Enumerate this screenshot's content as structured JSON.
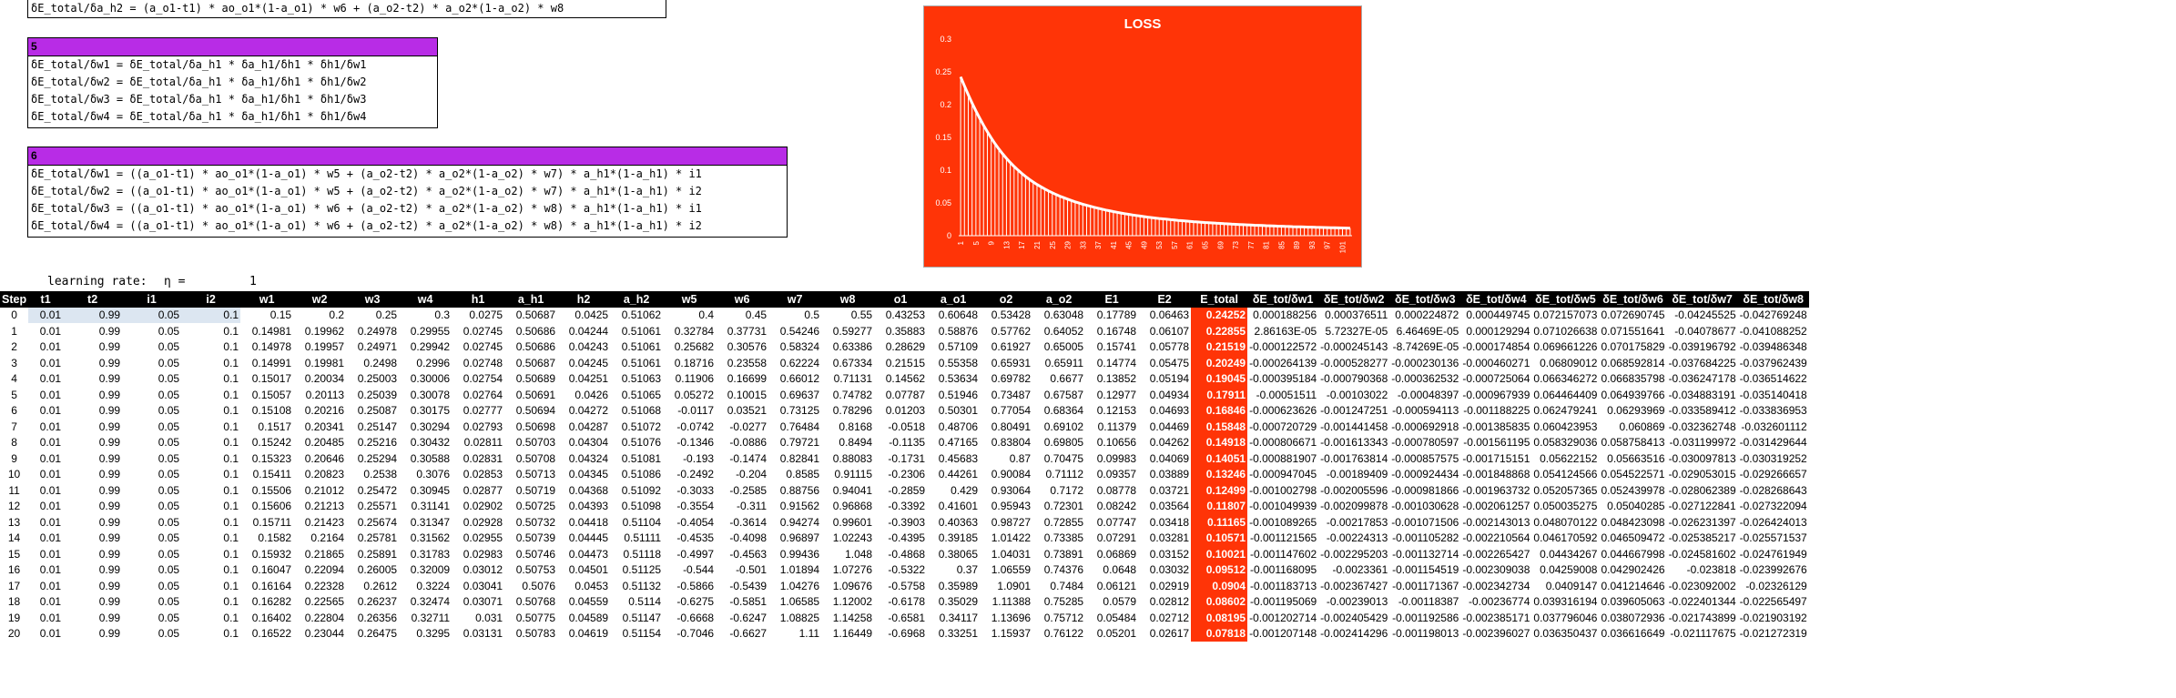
{
  "top_formula": "δE_total/δa_h2 = (a_o1-t1) * ao_o1*(1-a_o1) * w6 + (a_o2-t2) * a_o2*(1-a_o2) * w8",
  "box5": {
    "title": "5",
    "lines": [
      "δE_total/δw1 = δE_total/δa_h1 * δa_h1/δh1 * δh1/δw1",
      "δE_total/δw2 = δE_total/δa_h1 * δa_h1/δh1 * δh1/δw2",
      "δE_total/δw3 = δE_total/δa_h1 * δa_h1/δh1 * δh1/δw3",
      "δE_total/δw4 = δE_total/δa_h1 * δa_h1/δh1 * δh1/δw4"
    ]
  },
  "box6": {
    "title": "6",
    "lines": [
      "δE_total/δw1 = ((a_o1-t1) * ao_o1*(1-a_o1) * w5 + (a_o2-t2) * a_o2*(1-a_o2) * w7) * a_h1*(1-a_h1) * i1",
      "δE_total/δw2 = ((a_o1-t1) * ao_o1*(1-a_o1) * w5 + (a_o2-t2) * a_o2*(1-a_o2) * w7) * a_h1*(1-a_h1) * i2",
      "δE_total/δw3 = ((a_o1-t1) * ao_o1*(1-a_o1) * w6 + (a_o2-t2) * a_o2*(1-a_o2) * w8) * a_h1*(1-a_h1) * i1",
      "δE_total/δw4 = ((a_o1-t1) * ao_o1*(1-a_o1) * w6 + (a_o2-t2) * a_o2*(1-a_o2) * w8) * a_h1*(1-a_h1) * i2"
    ]
  },
  "learning_rate": {
    "label": "learning rate:",
    "symbol": "η =",
    "value": "1"
  },
  "chart_data": {
    "type": "bar",
    "title": "LOSS",
    "ylim": [
      0,
      0.3
    ],
    "yticks": [
      "0",
      "0.05",
      "0.1",
      "0.15",
      "0.2",
      "0.25",
      "0.3"
    ],
    "xticks": [
      "1",
      "5",
      "9",
      "13",
      "17",
      "21",
      "25",
      "29",
      "33",
      "37",
      "41",
      "45",
      "49",
      "53",
      "57",
      "61",
      "65",
      "69",
      "73",
      "77",
      "81",
      "85",
      "89",
      "93",
      "97",
      "101"
    ],
    "values": [
      0.24252,
      0.22855,
      0.21519,
      0.20249,
      0.19045,
      0.17911,
      0.16846,
      0.15848,
      0.14918,
      0.14051,
      0.13246,
      0.12499,
      0.11807,
      0.11165,
      0.10571,
      0.10021,
      0.09512,
      0.0904,
      0.08602,
      0.08195,
      0.07818,
      0.0747,
      0.0714,
      0.0683,
      0.0655,
      0.0628,
      0.0603,
      0.058,
      0.0558,
      0.0537,
      0.0517,
      0.0499,
      0.0481,
      0.0464,
      0.0448,
      0.0433,
      0.0419,
      0.0405,
      0.0392,
      0.038,
      0.0368,
      0.0357,
      0.0346,
      0.0336,
      0.0326,
      0.0317,
      0.0308,
      0.03,
      0.0292,
      0.0284,
      0.0277,
      0.027,
      0.0263,
      0.0257,
      0.0251,
      0.0245,
      0.0239,
      0.0234,
      0.0229,
      0.0224,
      0.0219,
      0.0214,
      0.021,
      0.0206,
      0.0202,
      0.0198,
      0.0194,
      0.019,
      0.0187,
      0.0183,
      0.018,
      0.0177,
      0.0174,
      0.0171,
      0.0168,
      0.0165,
      0.0163,
      0.016,
      0.0158,
      0.0155,
      0.0153,
      0.0151,
      0.0148,
      0.0146,
      0.0144,
      0.0142,
      0.014,
      0.0138,
      0.0136,
      0.0135,
      0.0133,
      0.0131,
      0.013,
      0.0128,
      0.0126,
      0.0125,
      0.0123,
      0.0122,
      0.0121,
      0.0119,
      0.0118,
      0.0117,
      0.0115
    ],
    "colors": {
      "background": "#ff3407",
      "bar": "#ffffff"
    }
  },
  "table": {
    "headers": [
      "Step",
      "t1",
      "t2",
      "i1",
      "i2",
      "w1",
      "w2",
      "w3",
      "w4",
      "h1",
      "a_h1",
      "h2",
      "a_h2",
      "w5",
      "w6",
      "w7",
      "w8",
      "o1",
      "a_o1",
      "o2",
      "a_o2",
      "E1",
      "E2",
      "E_total",
      "δE_tot/δw1",
      "δE_tot/δw2",
      "δE_tot/δw3",
      "δE_tot/δw4",
      "δE_tot/δw5",
      "δE_tot/δw6",
      "δE_tot/δw7",
      "δE_tot/δw8"
    ],
    "rows": [
      [
        "0",
        "0.01",
        "0.99",
        "0.05",
        "0.1",
        "0.15",
        "0.2",
        "0.25",
        "0.3",
        "0.0275",
        "0.50687",
        "0.0425",
        "0.51062",
        "0.4",
        "0.45",
        "0.5",
        "0.55",
        "0.43253",
        "0.60648",
        "0.53428",
        "0.63048",
        "0.17789",
        "0.06463",
        "0.24252",
        "0.000188256",
        "0.000376511",
        "0.000224872",
        "0.000449745",
        "0.072157073",
        "0.072690745",
        "-0.04245525",
        "-0.042769248"
      ],
      [
        "1",
        "0.01",
        "0.99",
        "0.05",
        "0.1",
        "0.14981",
        "0.19962",
        "0.24978",
        "0.29955",
        "0.02745",
        "0.50686",
        "0.04244",
        "0.51061",
        "0.32784",
        "0.37731",
        "0.54246",
        "0.59277",
        "0.35883",
        "0.58876",
        "0.57762",
        "0.64052",
        "0.16748",
        "0.06107",
        "0.22855",
        "2.86163E-05",
        "5.72327E-05",
        "6.46469E-05",
        "0.000129294",
        "0.071026638",
        "0.071551641",
        "-0.04078677",
        "-0.041088252"
      ],
      [
        "2",
        "0.01",
        "0.99",
        "0.05",
        "0.1",
        "0.14978",
        "0.19957",
        "0.24971",
        "0.29942",
        "0.02745",
        "0.50686",
        "0.04243",
        "0.51061",
        "0.25682",
        "0.30576",
        "0.58324",
        "0.63386",
        "0.28629",
        "0.57109",
        "0.61927",
        "0.65005",
        "0.15741",
        "0.05778",
        "0.21519",
        "-0.000122572",
        "-0.000245143",
        "-8.74269E-05",
        "-0.000174854",
        "0.069661226",
        "0.070175829",
        "-0.039196792",
        "-0.039486348"
      ],
      [
        "3",
        "0.01",
        "0.99",
        "0.05",
        "0.1",
        "0.14991",
        "0.19981",
        "0.2498",
        "0.2996",
        "0.02748",
        "0.50687",
        "0.04245",
        "0.51061",
        "0.18716",
        "0.23558",
        "0.62224",
        "0.67334",
        "0.21515",
        "0.55358",
        "0.65931",
        "0.65911",
        "0.14774",
        "0.05475",
        "0.20249",
        "-0.000264139",
        "-0.000528277",
        "-0.000230136",
        "-0.000460271",
        "0.06809012",
        "0.068592814",
        "-0.037684225",
        "-0.037962439"
      ],
      [
        "4",
        "0.01",
        "0.99",
        "0.05",
        "0.1",
        "0.15017",
        "0.20034",
        "0.25003",
        "0.30006",
        "0.02754",
        "0.50689",
        "0.04251",
        "0.51063",
        "0.11906",
        "0.16699",
        "0.66012",
        "0.71131",
        "0.14562",
        "0.53634",
        "0.69782",
        "0.6677",
        "0.13852",
        "0.05194",
        "0.19045",
        "-0.000395184",
        "-0.000790368",
        "-0.000362532",
        "-0.000725064",
        "0.066346272",
        "0.066835798",
        "-0.036247178",
        "-0.036514622"
      ],
      [
        "5",
        "0.01",
        "0.99",
        "0.05",
        "0.1",
        "0.15057",
        "0.20113",
        "0.25039",
        "0.30078",
        "0.02764",
        "0.50691",
        "0.0426",
        "0.51065",
        "0.05272",
        "0.10015",
        "0.69637",
        "0.74782",
        "0.07787",
        "0.51946",
        "0.73487",
        "0.67587",
        "0.12977",
        "0.04934",
        "0.17911",
        "-0.00051511",
        "-0.00103022",
        "-0.00048397",
        "-0.000967939",
        "0.064464409",
        "0.064939766",
        "-0.034883191",
        "-0.035140418"
      ],
      [
        "6",
        "0.01",
        "0.99",
        "0.05",
        "0.1",
        "0.15108",
        "0.20216",
        "0.25087",
        "0.30175",
        "0.02777",
        "0.50694",
        "0.04272",
        "0.51068",
        "-0.0117",
        "0.03521",
        "0.73125",
        "0.78296",
        "0.01203",
        "0.50301",
        "0.77054",
        "0.68364",
        "0.12153",
        "0.04693",
        "0.16846",
        "-0.000623626",
        "-0.001247251",
        "-0.000594113",
        "-0.001188225",
        "0.062479241",
        "0.06293969",
        "-0.033589412",
        "-0.033836953"
      ],
      [
        "7",
        "0.01",
        "0.99",
        "0.05",
        "0.1",
        "0.1517",
        "0.20341",
        "0.25147",
        "0.30294",
        "0.02793",
        "0.50698",
        "0.04287",
        "0.51072",
        "-0.0742",
        "-0.0277",
        "0.76484",
        "0.8168",
        "-0.0518",
        "0.48706",
        "0.80491",
        "0.69102",
        "0.11379",
        "0.04469",
        "0.15848",
        "-0.000720729",
        "-0.001441458",
        "-0.000692918",
        "-0.001385835",
        "0.060423953",
        "0.060869",
        "-0.032362748",
        "-0.032601112"
      ],
      [
        "8",
        "0.01",
        "0.99",
        "0.05",
        "0.1",
        "0.15242",
        "0.20485",
        "0.25216",
        "0.30432",
        "0.02811",
        "0.50703",
        "0.04304",
        "0.51076",
        "-0.1346",
        "-0.0886",
        "0.79721",
        "0.8494",
        "-0.1135",
        "0.47165",
        "0.83804",
        "0.69805",
        "0.10656",
        "0.04262",
        "0.14918",
        "-0.000806671",
        "-0.001613343",
        "-0.000780597",
        "-0.001561195",
        "0.058329036",
        "0.058758413",
        "-0.031199972",
        "-0.031429644"
      ],
      [
        "9",
        "0.01",
        "0.99",
        "0.05",
        "0.1",
        "0.15323",
        "0.20646",
        "0.25294",
        "0.30588",
        "0.02831",
        "0.50708",
        "0.04324",
        "0.51081",
        "-0.193",
        "-0.1474",
        "0.82841",
        "0.88083",
        "-0.1731",
        "0.45683",
        "0.87",
        "0.70475",
        "0.09983",
        "0.04069",
        "0.14051",
        "-0.000881907",
        "-0.001763814",
        "-0.000857575",
        "-0.001715151",
        "0.05622152",
        "0.05663516",
        "-0.030097813",
        "-0.030319252"
      ],
      [
        "10",
        "0.01",
        "0.99",
        "0.05",
        "0.1",
        "0.15411",
        "0.20823",
        "0.2538",
        "0.3076",
        "0.02853",
        "0.50713",
        "0.04345",
        "0.51086",
        "-0.2492",
        "-0.204",
        "0.8585",
        "0.91115",
        "-0.2306",
        "0.44261",
        "0.90084",
        "0.71112",
        "0.09357",
        "0.03889",
        "0.13246",
        "-0.000947045",
        "-0.00189409",
        "-0.000924434",
        "-0.001848868",
        "0.054124566",
        "0.054522571",
        "-0.029053015",
        "-0.029266657"
      ],
      [
        "11",
        "0.01",
        "0.99",
        "0.05",
        "0.1",
        "0.15506",
        "0.21012",
        "0.25472",
        "0.30945",
        "0.02877",
        "0.50719",
        "0.04368",
        "0.51092",
        "-0.3033",
        "-0.2585",
        "0.88756",
        "0.94041",
        "-0.2859",
        "0.429",
        "0.93064",
        "0.7172",
        "0.08778",
        "0.03721",
        "0.12499",
        "-0.001002798",
        "-0.002005596",
        "-0.000981866",
        "-0.001963732",
        "0.052057365",
        "0.052439978",
        "-0.028062389",
        "-0.028268643"
      ],
      [
        "12",
        "0.01",
        "0.99",
        "0.05",
        "0.1",
        "0.15606",
        "0.21213",
        "0.25571",
        "0.31141",
        "0.02902",
        "0.50725",
        "0.04393",
        "0.51098",
        "-0.3554",
        "-0.311",
        "0.91562",
        "0.96868",
        "-0.3392",
        "0.41601",
        "0.95943",
        "0.72301",
        "0.08242",
        "0.03564",
        "0.11807",
        "-0.001049939",
        "-0.002099878",
        "-0.001030628",
        "-0.002061257",
        "0.050035275",
        "0.05040285",
        "-0.027122841",
        "-0.027322094"
      ],
      [
        "13",
        "0.01",
        "0.99",
        "0.05",
        "0.1",
        "0.15711",
        "0.21423",
        "0.25674",
        "0.31347",
        "0.02928",
        "0.50732",
        "0.04418",
        "0.51104",
        "-0.4054",
        "-0.3614",
        "0.94274",
        "0.99601",
        "-0.3903",
        "0.40363",
        "0.98727",
        "0.72855",
        "0.07747",
        "0.03418",
        "0.11165",
        "-0.001089265",
        "-0.00217853",
        "-0.001071506",
        "-0.002143013",
        "0.048070122",
        "0.048423098",
        "-0.026231397",
        "-0.026424013"
      ],
      [
        "14",
        "0.01",
        "0.99",
        "0.05",
        "0.1",
        "0.1582",
        "0.2164",
        "0.25781",
        "0.31562",
        "0.02955",
        "0.50739",
        "0.04445",
        "0.51111",
        "-0.4535",
        "-0.4098",
        "0.96897",
        "1.02243",
        "-0.4395",
        "0.39185",
        "1.01422",
        "0.73385",
        "0.07291",
        "0.03281",
        "0.10571",
        "-0.001121565",
        "-0.00224313",
        "-0.001105282",
        "-0.002210564",
        "0.046170592",
        "0.046509472",
        "-0.025385217",
        "-0.025571537"
      ],
      [
        "15",
        "0.01",
        "0.99",
        "0.05",
        "0.1",
        "0.15932",
        "0.21865",
        "0.25891",
        "0.31783",
        "0.02983",
        "0.50746",
        "0.04473",
        "0.51118",
        "-0.4997",
        "-0.4563",
        "0.99436",
        "1.048",
        "-0.4868",
        "0.38065",
        "1.04031",
        "0.73891",
        "0.06869",
        "0.03152",
        "0.10021",
        "-0.001147602",
        "-0.002295203",
        "-0.001132714",
        "-0.002265427",
        "0.04434267",
        "0.044667998",
        "-0.024581602",
        "-0.024761949"
      ],
      [
        "16",
        "0.01",
        "0.99",
        "0.05",
        "0.1",
        "0.16047",
        "0.22094",
        "0.26005",
        "0.32009",
        "0.03012",
        "0.50753",
        "0.04501",
        "0.51125",
        "-0.544",
        "-0.501",
        "1.01894",
        "1.07276",
        "-0.5322",
        "0.37",
        "1.06559",
        "0.74376",
        "0.0648",
        "0.03032",
        "0.09512",
        "-0.001168095",
        "-0.0023361",
        "-0.001154519",
        "-0.002309038",
        "0.04259008",
        "0.042902426",
        "-0.023818",
        "-0.023992676"
      ],
      [
        "17",
        "0.01",
        "0.99",
        "0.05",
        "0.1",
        "0.16164",
        "0.22328",
        "0.2612",
        "0.3224",
        "0.03041",
        "0.5076",
        "0.0453",
        "0.51132",
        "-0.5866",
        "-0.5439",
        "1.04276",
        "1.09676",
        "-0.5758",
        "0.35989",
        "1.0901",
        "0.7484",
        "0.06121",
        "0.02919",
        "0.0904",
        "-0.001183713",
        "-0.002367427",
        "-0.001171367",
        "-0.002342734",
        "0.0409147",
        "0.041214646",
        "-0.023092002",
        "-0.02326129"
      ],
      [
        "18",
        "0.01",
        "0.99",
        "0.05",
        "0.1",
        "0.16282",
        "0.22565",
        "0.26237",
        "0.32474",
        "0.03071",
        "0.50768",
        "0.04559",
        "0.5114",
        "-0.6275",
        "-0.5851",
        "1.06585",
        "1.12002",
        "-0.6178",
        "0.35029",
        "1.11388",
        "0.75285",
        "0.0579",
        "0.02812",
        "0.08602",
        "-0.001195069",
        "-0.00239013",
        "-0.00118387",
        "-0.00236774",
        "0.039316194",
        "0.039605063",
        "-0.022401344",
        "-0.022565497"
      ],
      [
        "19",
        "0.01",
        "0.99",
        "0.05",
        "0.1",
        "0.16402",
        "0.22804",
        "0.26356",
        "0.32711",
        "0.031",
        "0.50775",
        "0.04589",
        "0.51147",
        "-0.6668",
        "-0.6247",
        "1.08825",
        "1.14258",
        "-0.6581",
        "0.34117",
        "1.13696",
        "0.75712",
        "0.05484",
        "0.02712",
        "0.08195",
        "-0.001202714",
        "-0.002405429",
        "-0.001192586",
        "-0.002385171",
        "0.037796046",
        "0.038072936",
        "-0.021743899",
        "-0.021903192"
      ],
      [
        "20",
        "0.01",
        "0.99",
        "0.05",
        "0.1",
        "0.16522",
        "0.23044",
        "0.26475",
        "0.3295",
        "0.03131",
        "0.50783",
        "0.04619",
        "0.51154",
        "-0.7046",
        "-0.6627",
        "1.11",
        "1.16449",
        "-0.6968",
        "0.33251",
        "1.15937",
        "0.76122",
        "0.05201",
        "0.02617",
        "0.07818",
        "-0.001207148",
        "-0.002414296",
        "-0.001198013",
        "-0.002396027",
        "0.036350437",
        "0.036616649",
        "-0.021117675",
        "-0.021272319"
      ]
    ]
  }
}
